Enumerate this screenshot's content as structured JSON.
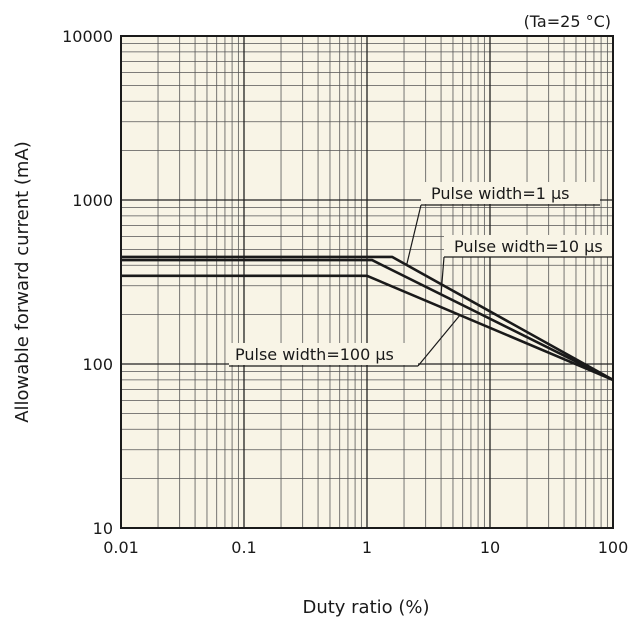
{
  "chart_data": {
    "type": "line",
    "title": "",
    "condition_note": "(Ta=25 °C)",
    "xlabel": "Duty ratio (%)",
    "ylabel": "Allowable forward current (mA)",
    "xscale": "log",
    "yscale": "log",
    "xlim": [
      0.01,
      100
    ],
    "ylim": [
      10,
      10000
    ],
    "grid": true,
    "plot_background": "#f8f4e6",
    "line_color": "#1a1a1a",
    "x_ticks": [
      {
        "value": 0.01,
        "label": "0.01"
      },
      {
        "value": 0.1,
        "label": "0.1"
      },
      {
        "value": 1,
        "label": "1"
      },
      {
        "value": 10,
        "label": "10"
      },
      {
        "value": 100,
        "label": "100"
      }
    ],
    "y_ticks": [
      {
        "value": 10,
        "label": "10"
      },
      {
        "value": 100,
        "label": "100"
      },
      {
        "value": 1000,
        "label": "1000"
      },
      {
        "value": 10000,
        "label": "10000"
      }
    ],
    "series": [
      {
        "name": "Pulse width=1 μs",
        "x": [
          0.01,
          1.6,
          100
        ],
        "y": [
          450,
          450,
          80
        ]
      },
      {
        "name": "Pulse width=10 μs",
        "x": [
          0.01,
          1.1,
          100
        ],
        "y": [
          430,
          430,
          80
        ]
      },
      {
        "name": "Pulse width=100 μs",
        "x": [
          0.01,
          1.0,
          100
        ],
        "y": [
          345,
          345,
          80
        ]
      }
    ]
  }
}
